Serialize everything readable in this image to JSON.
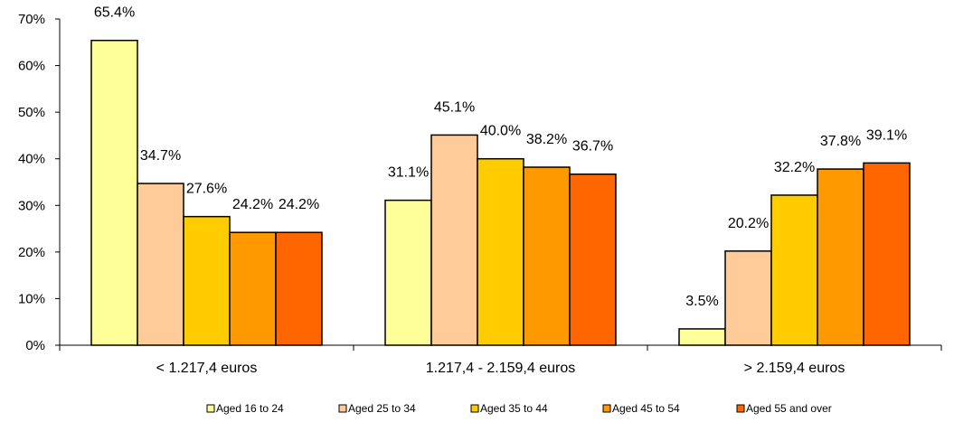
{
  "chart_data": {
    "type": "bar",
    "title": "",
    "xlabel": "",
    "ylabel": "",
    "categories": [
      "< 1.217,4 euros",
      "1.217,4 - 2.159,4 euros",
      "> 2.159,4 euros"
    ],
    "series": [
      {
        "name": "Aged 16 to 24",
        "color": "#FFFF99",
        "values": [
          65.4,
          31.1,
          3.5
        ],
        "labels": [
          "65.4%",
          "31.1%",
          "3.5%"
        ]
      },
      {
        "name": "Aged 25 to 34",
        "color": "#FFCC99",
        "values": [
          34.7,
          45.1,
          20.2
        ],
        "labels": [
          "34.7%",
          "45.1%",
          "20.2%"
        ]
      },
      {
        "name": "Aged 35 to 44",
        "color": "#FFCC00",
        "values": [
          27.6,
          40.0,
          32.2
        ],
        "labels": [
          "27.6%",
          "40.0%",
          "32.2%"
        ]
      },
      {
        "name": "Aged 45 to 54",
        "color": "#FF9900",
        "values": [
          24.2,
          38.2,
          37.8
        ],
        "labels": [
          "24.2%",
          "38.2%",
          "37.8%"
        ]
      },
      {
        "name": "Aged 55 and over",
        "color": "#FF6600",
        "values": [
          24.2,
          36.7,
          39.1
        ],
        "labels": [
          "24.2%",
          "36.7%",
          "39.1%"
        ]
      }
    ],
    "ylim": [
      0,
      70
    ],
    "yticks": [
      0,
      10,
      20,
      30,
      40,
      50,
      60,
      70
    ],
    "ytick_labels": [
      "0%",
      "10%",
      "20%",
      "30%",
      "40%",
      "50%",
      "60%",
      "70%"
    ],
    "grid": false,
    "legend_position": "bottom"
  }
}
